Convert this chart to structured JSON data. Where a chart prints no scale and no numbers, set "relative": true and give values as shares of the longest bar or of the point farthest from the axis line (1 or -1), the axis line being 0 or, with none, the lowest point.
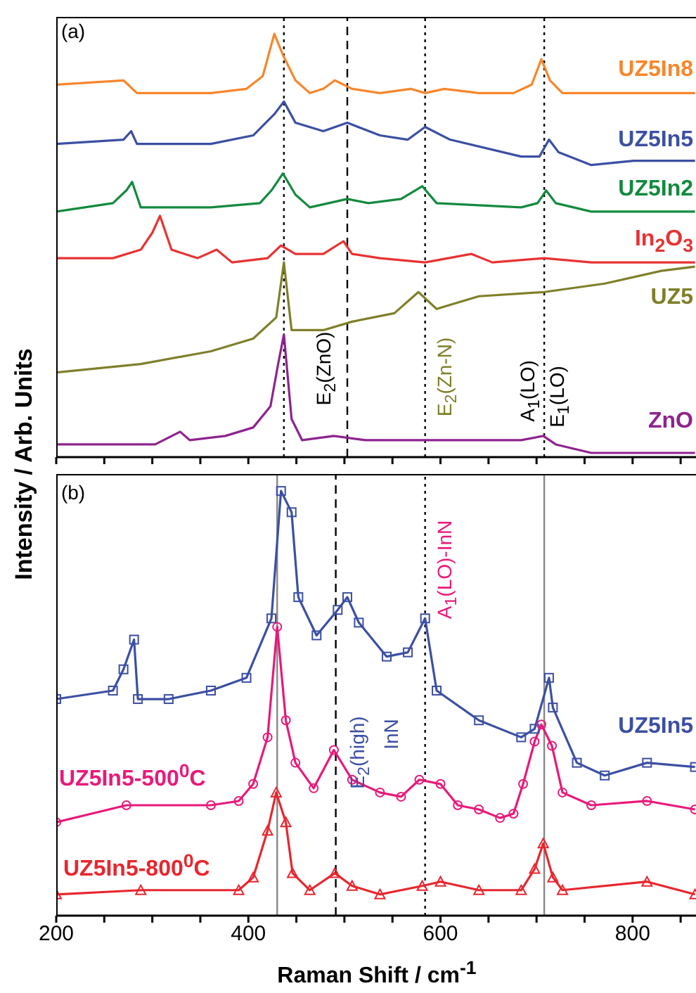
{
  "chart_data": [
    {
      "type": "line",
      "relative": true,
      "ylabel": "Intensity / Arb. Units",
      "xlim": [
        200,
        866
      ],
      "xticks": [
        200,
        250,
        300,
        350,
        400,
        450,
        500,
        550,
        600,
        650,
        700,
        750,
        800,
        850
      ],
      "tick_labels": false,
      "annotations": [
        "(a)",
        "E$_{2}$(ZnO)",
        "E$_{2}$(Zn-N)",
        "A$_{1}$(LO)",
        "E$_{1}$(LO)"
      ],
      "ref_lines": [
        {
          "axis": "x",
          "value": 437,
          "color": "#000000",
          "line_style": "dotted"
        },
        {
          "axis": "x",
          "value": 503,
          "color": "#000000",
          "line_style": "dashed"
        },
        {
          "axis": "x",
          "value": 584,
          "color": "#000000",
          "line_style": "dotted"
        },
        {
          "axis": "x",
          "value": 708,
          "color": "#000000",
          "line_style": "dotted"
        }
      ],
      "series": [
        {
          "name": "UZ5In8",
          "color": "#f7862b",
          "x": [
            200,
            270,
            284,
            361,
            398,
            415,
            427,
            436,
            449,
            464,
            478,
            490,
            508,
            537,
            569,
            584,
            604,
            640,
            676,
            695,
            705,
            714,
            727,
            771,
            830,
            865
          ],
          "values": [
            0.88,
            0.89,
            0.86,
            0.86,
            0.87,
            0.9,
            1.0,
            0.95,
            0.89,
            0.86,
            0.87,
            0.89,
            0.87,
            0.86,
            0.87,
            0.86,
            0.87,
            0.86,
            0.86,
            0.88,
            0.94,
            0.89,
            0.86,
            0.86,
            0.86,
            0.86
          ]
        },
        {
          "name": "UZ5In5",
          "color": "#3b4fa3",
          "x": [
            200,
            270,
            278,
            284,
            361,
            405,
            427,
            437,
            449,
            478,
            503,
            537,
            566,
            584,
            610,
            684,
            703,
            713,
            723,
            757,
            801,
            865
          ],
          "values": [
            0.74,
            0.75,
            0.77,
            0.74,
            0.74,
            0.76,
            0.81,
            0.84,
            0.79,
            0.77,
            0.79,
            0.76,
            0.75,
            0.78,
            0.75,
            0.71,
            0.71,
            0.75,
            0.72,
            0.69,
            0.7,
            0.7
          ]
        },
        {
          "name": "UZ5In2",
          "color": "#138a3e",
          "x": [
            200,
            259,
            273,
            279,
            288,
            361,
            412,
            424,
            436,
            449,
            464,
            503,
            525,
            559,
            581,
            596,
            684,
            701,
            710,
            720,
            757,
            865
          ],
          "values": [
            0.58,
            0.6,
            0.63,
            0.65,
            0.59,
            0.59,
            0.6,
            0.63,
            0.67,
            0.62,
            0.59,
            0.61,
            0.6,
            0.61,
            0.64,
            0.6,
            0.59,
            0.6,
            0.63,
            0.6,
            0.58,
            0.58
          ]
        },
        {
          "name": "In$_{2}$O$_{3}$",
          "color": "#e83232",
          "x": [
            200,
            259,
            288,
            300,
            308,
            320,
            347,
            367,
            383,
            420,
            434,
            449,
            478,
            499,
            508,
            537,
            584,
            632,
            654,
            708,
            757,
            865
          ],
          "values": [
            0.47,
            0.47,
            0.49,
            0.53,
            0.57,
            0.49,
            0.47,
            0.49,
            0.46,
            0.47,
            0.5,
            0.48,
            0.48,
            0.51,
            0.48,
            0.47,
            0.46,
            0.48,
            0.46,
            0.47,
            0.46,
            0.46
          ]
        },
        {
          "name": "UZ5",
          "color": "#7f7f2a",
          "x": [
            200,
            288,
            361,
            405,
            429,
            437,
            445,
            478,
            508,
            552,
            577,
            596,
            640,
            708,
            771,
            830,
            865
          ],
          "values": [
            0.2,
            0.22,
            0.25,
            0.28,
            0.33,
            0.46,
            0.3,
            0.3,
            0.32,
            0.34,
            0.39,
            0.35,
            0.38,
            0.39,
            0.41,
            0.44,
            0.45
          ]
        },
        {
          "name": "ZnO",
          "color": "#8e238e",
          "x": [
            200,
            303,
            329,
            339,
            376,
            405,
            423,
            431,
            437,
            445,
            456,
            489,
            522,
            581,
            684,
            707,
            720,
            757,
            865
          ],
          "values": [
            0.03,
            0.03,
            0.06,
            0.04,
            0.05,
            0.07,
            0.12,
            0.22,
            0.29,
            0.09,
            0.04,
            0.05,
            0.04,
            0.04,
            0.04,
            0.05,
            0.03,
            0.01,
            0.01
          ]
        }
      ]
    },
    {
      "type": "line",
      "relative": true,
      "xlabel": "Raman Shift / cm$^{-1}$",
      "xlim": [
        200,
        866
      ],
      "xticks": [
        200,
        {
          "value": 250,
          "label": null
        },
        {
          "value": 300,
          "label": null
        },
        {
          "value": 350,
          "label": null
        },
        400,
        {
          "value": 450,
          "label": null
        },
        {
          "value": 500,
          "label": null
        },
        {
          "value": 550,
          "label": null
        },
        600,
        {
          "value": 650,
          "label": null
        },
        {
          "value": 700,
          "label": null
        },
        {
          "value": 750,
          "label": null
        },
        800,
        {
          "value": 850,
          "label": null
        }
      ],
      "tick_labels": "x",
      "annotations": [
        "(b)",
        "A$_{1}$(LO)-InN",
        "E$_{2}$(high)",
        "InN"
      ],
      "ref_lines": [
        {
          "axis": "x",
          "value": 430,
          "color": "#888888",
          "line_style": "solid"
        },
        {
          "axis": "x",
          "value": 491,
          "color": "#000000",
          "line_style": "dashed"
        },
        {
          "axis": "x",
          "value": 584,
          "color": "#000000",
          "line_style": "dotted"
        },
        {
          "axis": "x",
          "value": 708,
          "color": "#888888",
          "line_style": "solid"
        }
      ],
      "series": [
        {
          "name": "UZ5In5",
          "color": "#3b4fa3",
          "marker": "square",
          "x": [
            200,
            259,
            270,
            281,
            285,
            317,
            361,
            398,
            424,
            434,
            445,
            452,
            471,
            493,
            503,
            515,
            544,
            566,
            584,
            596,
            640,
            684,
            698,
            713,
            717,
            742,
            771,
            815,
            865
          ],
          "values": [
            0.51,
            0.53,
            0.58,
            0.65,
            0.51,
            0.51,
            0.53,
            0.56,
            0.7,
            1.0,
            0.95,
            0.75,
            0.66,
            0.72,
            0.75,
            0.69,
            0.61,
            0.62,
            0.7,
            0.53,
            0.46,
            0.42,
            0.44,
            0.56,
            0.49,
            0.36,
            0.33,
            0.36,
            0.35
          ]
        },
        {
          "name": "UZ5In5-500$^{0}$C",
          "color": "#e8197a",
          "marker": "circle",
          "x": [
            200,
            273,
            361,
            390,
            405,
            420,
            430,
            439,
            449,
            468,
            489,
            508,
            537,
            559,
            578,
            600,
            618,
            640,
            662,
            676,
            686,
            698,
            705,
            716,
            727,
            757,
            815,
            865
          ],
          "values": [
            0.22,
            0.26,
            0.26,
            0.27,
            0.31,
            0.42,
            0.68,
            0.46,
            0.36,
            0.3,
            0.39,
            0.32,
            0.29,
            0.28,
            0.32,
            0.31,
            0.26,
            0.25,
            0.23,
            0.24,
            0.31,
            0.41,
            0.45,
            0.4,
            0.29,
            0.26,
            0.27,
            0.25
          ]
        },
        {
          "name": "UZ5In5-800$^{0}$C",
          "color": "#e8262e",
          "marker": "triangle",
          "x": [
            200,
            288,
            390,
            405,
            420,
            429,
            439,
            446,
            464,
            490,
            508,
            537,
            581,
            600,
            640,
            684,
            698,
            707,
            717,
            727,
            815,
            865
          ],
          "values": [
            0.05,
            0.06,
            0.06,
            0.09,
            0.2,
            0.29,
            0.22,
            0.1,
            0.06,
            0.1,
            0.07,
            0.05,
            0.07,
            0.08,
            0.06,
            0.06,
            0.11,
            0.17,
            0.09,
            0.06,
            0.08,
            0.05
          ]
        }
      ]
    }
  ]
}
